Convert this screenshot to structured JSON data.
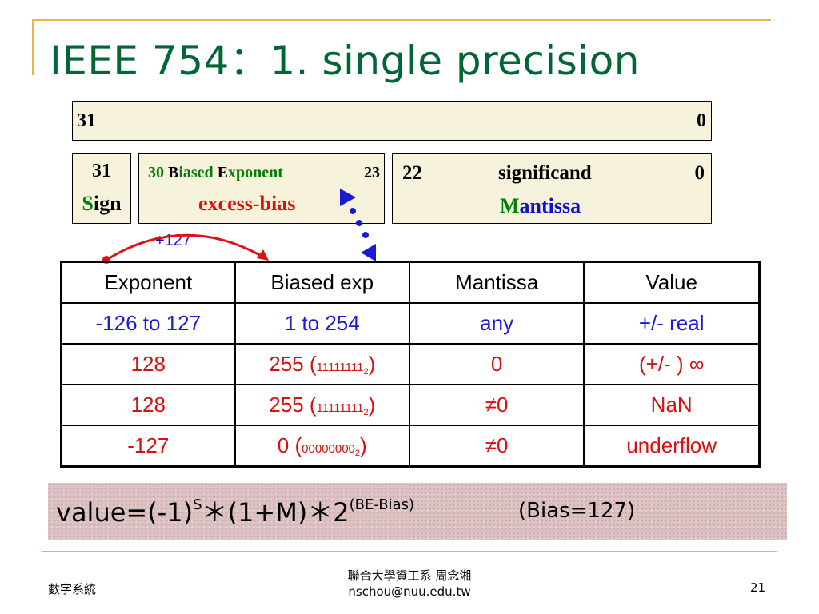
{
  "title": "IEEE 754：1. single precision",
  "layout_bar": {
    "left_bit": "31",
    "right_bit": "0"
  },
  "sign_field": {
    "bit": "31",
    "label_first": "S",
    "label_rest": "ign"
  },
  "exponent_field": {
    "start_bit": "30",
    "label_b": "B",
    "label_iased": "iased ",
    "label_e": "E",
    "label_xponent": "xponent",
    "end_bit": "23",
    "note": "excess-bias"
  },
  "mantissa_field": {
    "start_bit": "22",
    "label": "significand",
    "end_bit": "0",
    "name_first": "M",
    "name_rest": "antissa"
  },
  "offset_label": "+127",
  "table": {
    "headers": [
      "Exponent",
      "Biased exp",
      "Mantissa",
      "Value"
    ],
    "rows": [
      {
        "exponent": "-126 to 127",
        "biased": "1 to 254",
        "biased_bits": "",
        "biased_base": "",
        "mantissa": "any",
        "value": "+/- real"
      },
      {
        "exponent": "128",
        "biased": "255 (",
        "biased_bits": "11111111",
        "biased_base": "2",
        "biased_close": ")",
        "mantissa": "0",
        "value": "(+/- ) ∞"
      },
      {
        "exponent": "128",
        "biased": "255 (",
        "biased_bits": "11111111",
        "biased_base": "2",
        "biased_close": ")",
        "mantissa": "≠0",
        "value": "NaN"
      },
      {
        "exponent": "-127",
        "biased": "0 (",
        "biased_bits": "00000000",
        "biased_base": "2",
        "biased_close": ")",
        "mantissa": "≠0",
        "value": "underflow"
      }
    ]
  },
  "formula": {
    "lhs": "value=(-1)",
    "sign_exp": "S",
    "middle": "＊(1+M)＊2",
    "power": "(BE-Bias)",
    "bias_note": "(Bias=127)"
  },
  "footer": {
    "left": "數字系統",
    "center_line1": "聯合大學資工系  周念湘",
    "center_line2": "nschou@nuu.edu.tw",
    "page_number": "21"
  },
  "colors": {
    "title": "#006633",
    "frame": "#e7b54f",
    "field_bg": "#f7f2dc",
    "blue_text": "#1a1ad6",
    "red_text": "#d81010",
    "formula_bg": "#dcc2c2"
  }
}
